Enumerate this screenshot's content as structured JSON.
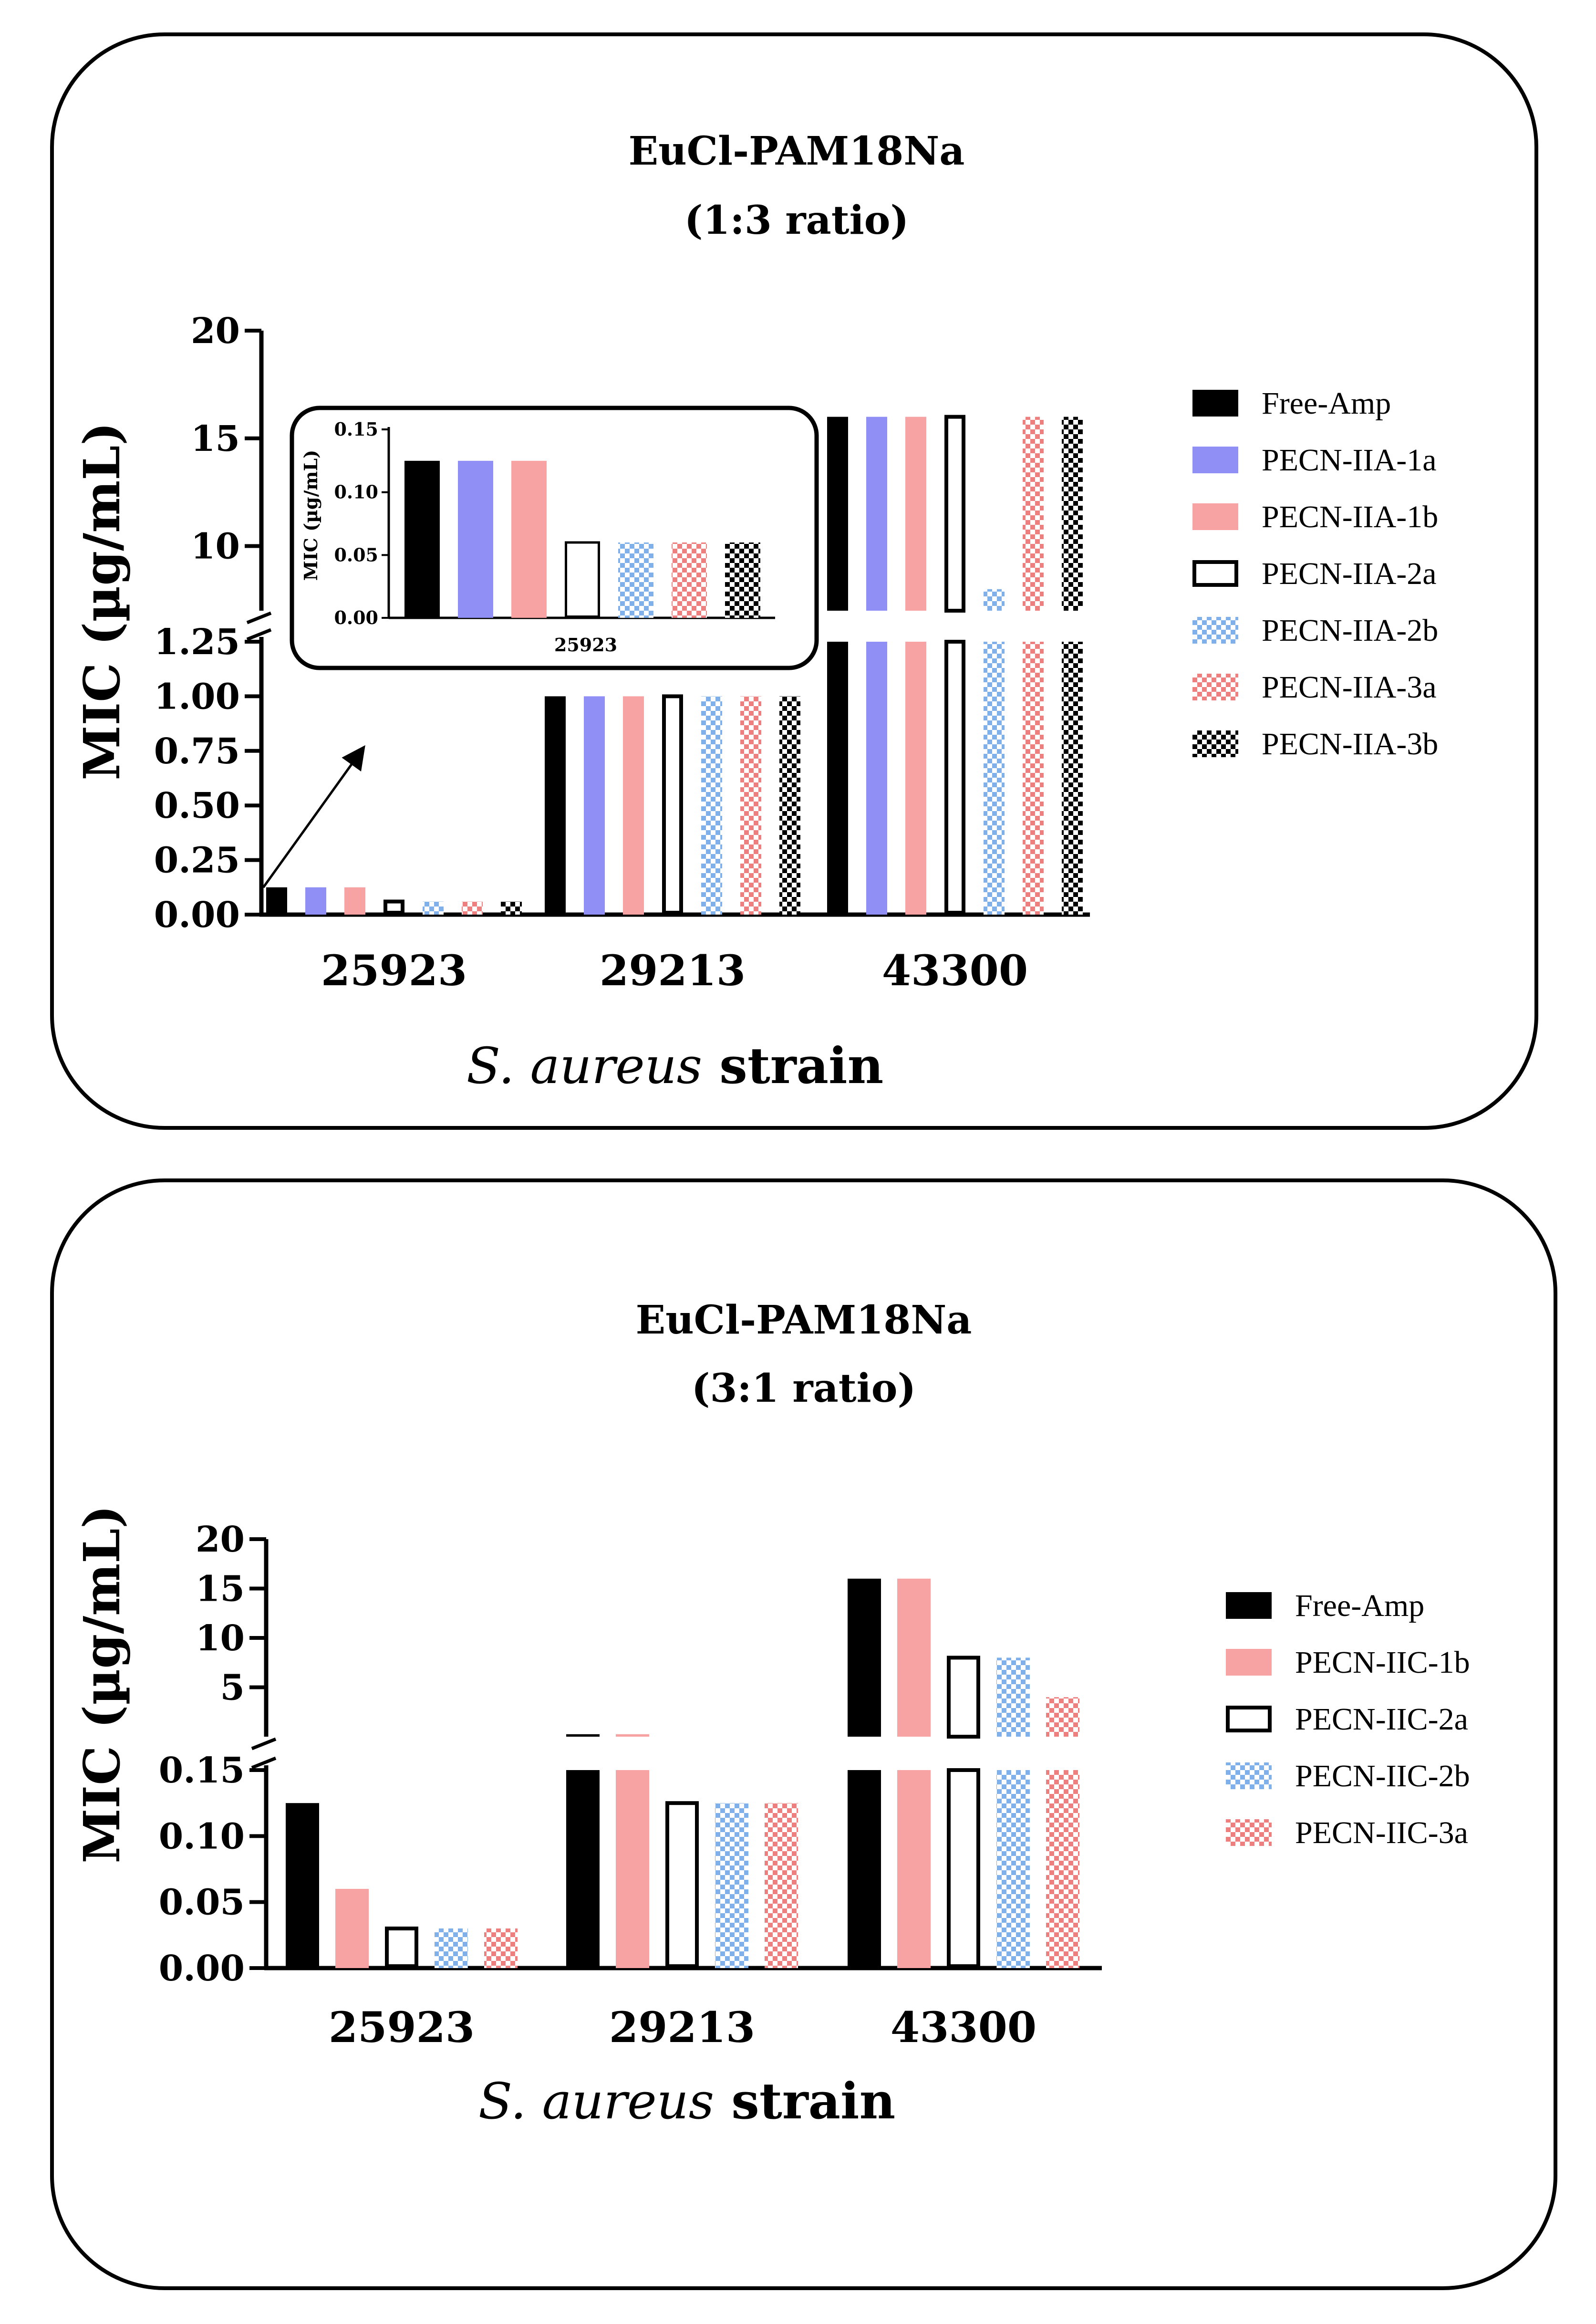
{
  "patterns": {
    "hatch_blue": "#8fb8ea",
    "hatch_red": "#f08a8a",
    "hatch_black": "#000000"
  },
  "chart_data": [
    {
      "type": "bar",
      "title": "EuCl-PAM18Na",
      "subtitle": "(1:3 ratio)",
      "ylabel": "MIC (µg/mL)",
      "xlabel_italic": "S. aureus",
      "xlabel_rest": " strain",
      "categories": [
        "25923",
        "29213",
        "43300"
      ],
      "axis_break": {
        "lower_range": [
          0,
          1.25
        ],
        "upper_range": [
          7,
          20
        ]
      },
      "lower_ticks": [
        "0.00",
        "0.25",
        "0.50",
        "0.75",
        "1.00",
        "1.25"
      ],
      "upper_ticks": [
        "10",
        "15",
        "20"
      ],
      "series": [
        {
          "name": "Free-Amp",
          "values": [
            0.125,
            1,
            16
          ],
          "color": "#000000",
          "pattern": "solid"
        },
        {
          "name": "PECN-IIA-1a",
          "values": [
            0.125,
            1,
            16
          ],
          "color": "#8f8ff5",
          "pattern": "solid"
        },
        {
          "name": "PECN-IIA-1b",
          "values": [
            0.125,
            1,
            16
          ],
          "color": "#f7a3a3",
          "pattern": "solid"
        },
        {
          "name": "PECN-IIA-2a",
          "values": [
            0.06,
            1,
            16
          ],
          "color": "#ffffff",
          "pattern": "solid"
        },
        {
          "name": "PECN-IIA-2b",
          "values": [
            0.06,
            1,
            8
          ],
          "color": "#8fb8ea",
          "pattern": "hatch_blue"
        },
        {
          "name": "PECN-IIA-3a",
          "values": [
            0.06,
            1,
            16
          ],
          "color": "#f08a8a",
          "pattern": "hatch_red"
        },
        {
          "name": "PECN-IIA-3b",
          "values": [
            0.06,
            1,
            16
          ],
          "color": "#ffffff",
          "pattern": "hatch_black"
        }
      ],
      "inset": {
        "category": "25923",
        "ylabel": "MIC (µg/mL)",
        "ylim": [
          0,
          0.15
        ],
        "ticks": [
          "0.00",
          "0.05",
          "0.10",
          "0.15"
        ],
        "values": [
          0.125,
          0.125,
          0.125,
          0.06,
          0.06,
          0.06,
          0.06
        ]
      }
    },
    {
      "type": "bar",
      "title": "EuCl-PAM18Na",
      "subtitle": "(3:1 ratio)",
      "ylabel": "MIC (µg/mL)",
      "xlabel_italic": "S. aureus",
      "xlabel_rest": " strain",
      "categories": [
        "25923",
        "29213",
        "43300"
      ],
      "axis_break": {
        "lower_range": [
          0,
          0.15
        ],
        "upper_range": [
          0,
          20
        ]
      },
      "lower_ticks": [
        "0.00",
        "0.05",
        "0.10",
        "0.15"
      ],
      "upper_ticks": [
        "5",
        "10",
        "15",
        "20"
      ],
      "series": [
        {
          "name": "Free-Amp",
          "values": [
            0.125,
            0.25,
            16
          ],
          "color": "#000000",
          "pattern": "solid"
        },
        {
          "name": "PECN-IIC-1b",
          "values": [
            0.06,
            0.25,
            16
          ],
          "color": "#f7a3a3",
          "pattern": "solid"
        },
        {
          "name": "PECN-IIC-2a",
          "values": [
            0.03,
            0.125,
            8
          ],
          "color": "#ffffff",
          "pattern": "solid"
        },
        {
          "name": "PECN-IIC-2b",
          "values": [
            0.03,
            0.125,
            8
          ],
          "color": "#8fb8ea",
          "pattern": "hatch_blue"
        },
        {
          "name": "PECN-IIC-3a",
          "values": [
            0.03,
            0.125,
            4
          ],
          "color": "#f08a8a",
          "pattern": "hatch_red"
        }
      ]
    }
  ]
}
